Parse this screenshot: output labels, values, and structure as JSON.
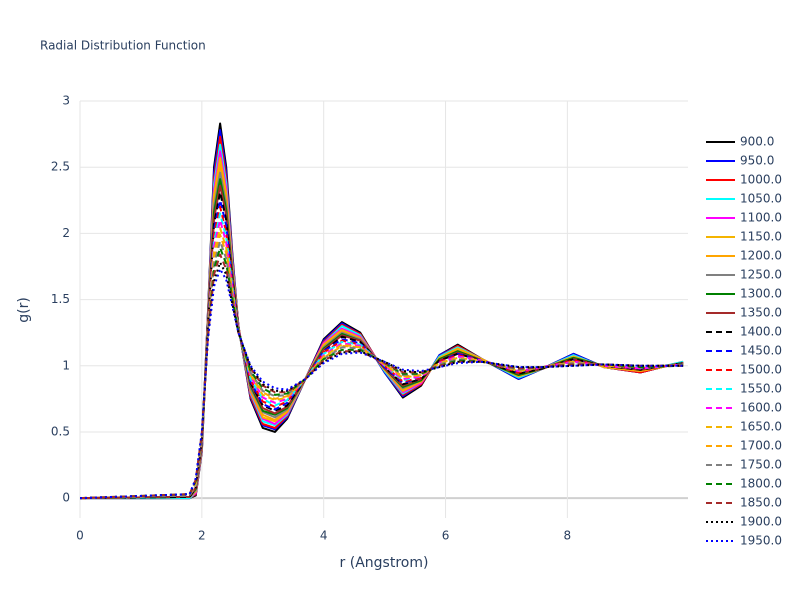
{
  "chart_data": {
    "type": "line",
    "title": "Radial Distribution Function",
    "xlabel": "r (Angstrom)",
    "ylabel": "g(r)",
    "xlim": [
      0,
      9.98
    ],
    "xticks": [
      0,
      2,
      4,
      6,
      8
    ],
    "ylim": [
      -0.15,
      3
    ],
    "yticks": [
      0,
      0.5,
      1,
      1.5,
      2,
      2.5,
      3
    ],
    "grid": true,
    "x": [
      0,
      1.8,
      1.9,
      2.0,
      2.1,
      2.2,
      2.3,
      2.4,
      2.5,
      2.6,
      2.8,
      3.0,
      3.2,
      3.4,
      3.7,
      4.0,
      4.3,
      4.6,
      5.0,
      5.3,
      5.6,
      5.9,
      6.2,
      6.6,
      7.2,
      7.6,
      8.1,
      8.6,
      9.2,
      9.9
    ],
    "series": [
      {
        "name": "900.0",
        "color": "#000000",
        "dash": "solid",
        "values": [
          0,
          0,
          0.02,
          0.35,
          1.4,
          2.5,
          2.83,
          2.5,
          1.85,
          1.3,
          0.75,
          0.53,
          0.5,
          0.6,
          0.9,
          1.2,
          1.33,
          1.25,
          0.95,
          0.76,
          0.85,
          1.08,
          1.16,
          1.05,
          0.9,
          0.98,
          1.09,
          0.99,
          0.95,
          1.03
        ]
      },
      {
        "name": "950.0",
        "color": "#0000ff",
        "dash": "solid",
        "values": [
          0,
          0,
          0.03,
          0.36,
          1.39,
          2.46,
          2.78,
          2.46,
          1.83,
          1.3,
          0.76,
          0.55,
          0.52,
          0.61,
          0.9,
          1.19,
          1.32,
          1.24,
          0.95,
          0.77,
          0.86,
          1.08,
          1.15,
          1.05,
          0.9,
          0.98,
          1.09,
          0.99,
          0.95,
          1.03
        ]
      },
      {
        "name": "1000.0",
        "color": "#ff0000",
        "dash": "solid",
        "values": [
          0,
          0,
          0.03,
          0.36,
          1.38,
          2.41,
          2.73,
          2.42,
          1.81,
          1.3,
          0.77,
          0.56,
          0.53,
          0.62,
          0.9,
          1.18,
          1.31,
          1.24,
          0.96,
          0.78,
          0.86,
          1.07,
          1.15,
          1.05,
          0.91,
          0.98,
          1.08,
          0.99,
          0.95,
          1.03
        ]
      },
      {
        "name": "1050.0",
        "color": "#00ffff",
        "dash": "solid",
        "values": [
          0,
          0,
          0.04,
          0.37,
          1.37,
          2.37,
          2.67,
          2.38,
          1.79,
          1.29,
          0.79,
          0.58,
          0.55,
          0.63,
          0.9,
          1.17,
          1.3,
          1.23,
          0.96,
          0.79,
          0.87,
          1.07,
          1.14,
          1.05,
          0.91,
          0.98,
          1.08,
          0.99,
          0.96,
          1.03
        ]
      },
      {
        "name": "1100.0",
        "color": "#ff00ff",
        "dash": "solid",
        "values": [
          0,
          0.01,
          0.04,
          0.38,
          1.36,
          2.33,
          2.62,
          2.34,
          1.77,
          1.29,
          0.8,
          0.6,
          0.56,
          0.64,
          0.9,
          1.17,
          1.28,
          1.22,
          0.97,
          0.8,
          0.87,
          1.06,
          1.13,
          1.05,
          0.92,
          0.98,
          1.07,
          0.99,
          0.96,
          1.02
        ]
      },
      {
        "name": "1150.0",
        "color": "#f4b400",
        "dash": "solid",
        "values": [
          0,
          0.01,
          0.05,
          0.39,
          1.35,
          2.29,
          2.57,
          2.3,
          1.75,
          1.29,
          0.81,
          0.61,
          0.58,
          0.65,
          0.9,
          1.16,
          1.27,
          1.21,
          0.97,
          0.81,
          0.88,
          1.06,
          1.13,
          1.05,
          0.92,
          0.98,
          1.07,
          0.99,
          0.96,
          1.02
        ]
      },
      {
        "name": "1200.0",
        "color": "#ffa500",
        "dash": "solid",
        "values": [
          0,
          0.01,
          0.06,
          0.39,
          1.34,
          2.24,
          2.52,
          2.26,
          1.74,
          1.29,
          0.82,
          0.63,
          0.59,
          0.66,
          0.9,
          1.15,
          1.26,
          1.21,
          0.97,
          0.82,
          0.88,
          1.05,
          1.12,
          1.04,
          0.93,
          0.98,
          1.06,
          1.0,
          0.96,
          1.02
        ]
      },
      {
        "name": "1250.0",
        "color": "#808080",
        "dash": "solid",
        "values": [
          0,
          0.01,
          0.06,
          0.4,
          1.33,
          2.2,
          2.46,
          2.22,
          1.72,
          1.28,
          0.83,
          0.65,
          0.61,
          0.67,
          0.9,
          1.14,
          1.25,
          1.2,
          0.98,
          0.83,
          0.89,
          1.05,
          1.11,
          1.04,
          0.93,
          0.98,
          1.06,
          1.0,
          0.97,
          1.02
        ]
      },
      {
        "name": "1300.0",
        "color": "#008000",
        "dash": "solid",
        "values": [
          0,
          0.01,
          0.07,
          0.41,
          1.32,
          2.16,
          2.41,
          2.18,
          1.7,
          1.28,
          0.85,
          0.66,
          0.63,
          0.68,
          0.9,
          1.13,
          1.24,
          1.19,
          0.98,
          0.84,
          0.89,
          1.05,
          1.11,
          1.04,
          0.93,
          0.98,
          1.06,
          1.0,
          0.97,
          1.02
        ]
      },
      {
        "name": "1350.0",
        "color": "#a52a2a",
        "dash": "solid",
        "values": [
          0,
          0.01,
          0.08,
          0.41,
          1.31,
          2.11,
          2.36,
          2.14,
          1.68,
          1.28,
          0.86,
          0.68,
          0.64,
          0.69,
          0.9,
          1.12,
          1.23,
          1.19,
          0.98,
          0.85,
          0.9,
          1.04,
          1.1,
          1.04,
          0.94,
          0.98,
          1.05,
          1.0,
          0.97,
          1.02
        ]
      },
      {
        "name": "1400.0",
        "color": "#000000",
        "dash": "dash",
        "values": [
          0,
          0.01,
          0.08,
          0.42,
          1.3,
          2.07,
          2.31,
          2.1,
          1.66,
          1.28,
          0.87,
          0.7,
          0.66,
          0.7,
          0.9,
          1.11,
          1.22,
          1.18,
          0.99,
          0.86,
          0.9,
          1.04,
          1.09,
          1.04,
          0.94,
          0.98,
          1.05,
          1.0,
          0.97,
          1.02
        ]
      },
      {
        "name": "1450.0",
        "color": "#0000ff",
        "dash": "dash",
        "values": [
          0,
          0.02,
          0.09,
          0.43,
          1.3,
          2.03,
          2.25,
          2.06,
          1.64,
          1.27,
          0.88,
          0.71,
          0.67,
          0.72,
          0.9,
          1.11,
          1.2,
          1.17,
          0.99,
          0.87,
          0.91,
          1.03,
          1.09,
          1.04,
          0.95,
          0.99,
          1.04,
          1.0,
          0.98,
          1.01
        ]
      },
      {
        "name": "1500.0",
        "color": "#ff0000",
        "dash": "dash",
        "values": [
          0,
          0.02,
          0.09,
          0.44,
          1.29,
          1.99,
          2.2,
          2.01,
          1.62,
          1.27,
          0.89,
          0.73,
          0.69,
          0.73,
          0.9,
          1.1,
          1.19,
          1.16,
          1.0,
          0.88,
          0.91,
          1.03,
          1.08,
          1.04,
          0.95,
          0.99,
          1.04,
          1.0,
          0.98,
          1.01
        ]
      },
      {
        "name": "1550.0",
        "color": "#00ffff",
        "dash": "dash",
        "values": [
          0,
          0.02,
          0.1,
          0.44,
          1.28,
          1.94,
          2.15,
          1.97,
          1.6,
          1.27,
          0.9,
          0.75,
          0.7,
          0.74,
          0.9,
          1.09,
          1.18,
          1.16,
          1.0,
          0.89,
          0.92,
          1.02,
          1.07,
          1.04,
          0.96,
          0.99,
          1.03,
          1.0,
          0.98,
          1.01
        ]
      },
      {
        "name": "1600.0",
        "color": "#ff00ff",
        "dash": "dash",
        "values": [
          0,
          0.02,
          0.11,
          0.45,
          1.27,
          1.9,
          2.1,
          1.93,
          1.58,
          1.27,
          0.92,
          0.76,
          0.72,
          0.75,
          0.9,
          1.08,
          1.17,
          1.15,
          1.0,
          0.9,
          0.92,
          1.02,
          1.07,
          1.04,
          0.96,
          0.99,
          1.03,
          1.0,
          0.98,
          1.01
        ]
      },
      {
        "name": "1650.0",
        "color": "#f4b400",
        "dash": "dash",
        "values": [
          0,
          0.02,
          0.11,
          0.46,
          1.26,
          1.86,
          2.04,
          1.89,
          1.56,
          1.26,
          0.93,
          0.78,
          0.74,
          0.76,
          0.9,
          1.07,
          1.16,
          1.14,
          1.01,
          0.91,
          0.93,
          1.02,
          1.06,
          1.04,
          0.96,
          0.99,
          1.03,
          1.0,
          0.99,
          1.01
        ]
      },
      {
        "name": "1700.0",
        "color": "#ffa500",
        "dash": "dash",
        "values": [
          0,
          0.02,
          0.12,
          0.46,
          1.25,
          1.81,
          1.99,
          1.85,
          1.55,
          1.26,
          0.94,
          0.8,
          0.75,
          0.77,
          0.9,
          1.06,
          1.15,
          1.14,
          1.01,
          0.92,
          0.93,
          1.01,
          1.05,
          1.03,
          0.97,
          0.99,
          1.02,
          1.01,
          0.99,
          1.01
        ]
      },
      {
        "name": "1750.0",
        "color": "#808080",
        "dash": "dash",
        "values": [
          0,
          0.02,
          0.13,
          0.47,
          1.24,
          1.77,
          1.94,
          1.81,
          1.53,
          1.26,
          0.95,
          0.81,
          0.77,
          0.78,
          0.9,
          1.05,
          1.14,
          1.13,
          1.02,
          0.93,
          0.94,
          1.01,
          1.05,
          1.03,
          0.97,
          0.99,
          1.02,
          1.01,
          0.99,
          1.01
        ]
      },
      {
        "name": "1800.0",
        "color": "#008000",
        "dash": "dash",
        "values": [
          0,
          0.03,
          0.13,
          0.48,
          1.23,
          1.73,
          1.89,
          1.77,
          1.51,
          1.26,
          0.96,
          0.83,
          0.78,
          0.79,
          0.9,
          1.05,
          1.12,
          1.12,
          1.02,
          0.94,
          0.94,
          1.0,
          1.04,
          1.03,
          0.98,
          0.99,
          1.01,
          1.01,
          0.99,
          1.0
        ]
      },
      {
        "name": "1850.0",
        "color": "#a52a2a",
        "dash": "dash",
        "values": [
          0,
          0.03,
          0.14,
          0.49,
          1.22,
          1.69,
          1.84,
          1.73,
          1.49,
          1.25,
          0.98,
          0.85,
          0.8,
          0.8,
          0.9,
          1.04,
          1.11,
          1.11,
          1.02,
          0.95,
          0.95,
          1.0,
          1.03,
          1.03,
          0.98,
          0.99,
          1.01,
          1.01,
          1.0,
          1.0
        ]
      },
      {
        "name": "1900.0",
        "color": "#000000",
        "dash": "dot",
        "values": [
          0,
          0.03,
          0.14,
          0.49,
          1.21,
          1.64,
          1.78,
          1.69,
          1.47,
          1.25,
          0.99,
          0.86,
          0.81,
          0.81,
          0.9,
          1.03,
          1.1,
          1.11,
          1.03,
          0.96,
          0.95,
          0.99,
          1.03,
          1.03,
          0.99,
          0.99,
          1.0,
          1.01,
          1.0,
          1.0
        ]
      },
      {
        "name": "1950.0",
        "color": "#0000ff",
        "dash": "dot",
        "values": [
          0,
          0.03,
          0.15,
          0.5,
          1.2,
          1.6,
          1.73,
          1.65,
          1.45,
          1.25,
          1.0,
          0.88,
          0.83,
          0.82,
          0.9,
          1.02,
          1.09,
          1.1,
          1.03,
          0.97,
          0.96,
          0.99,
          1.02,
          1.03,
          0.99,
          0.99,
          1.0,
          1.01,
          1.0,
          1.0
        ]
      }
    ]
  }
}
